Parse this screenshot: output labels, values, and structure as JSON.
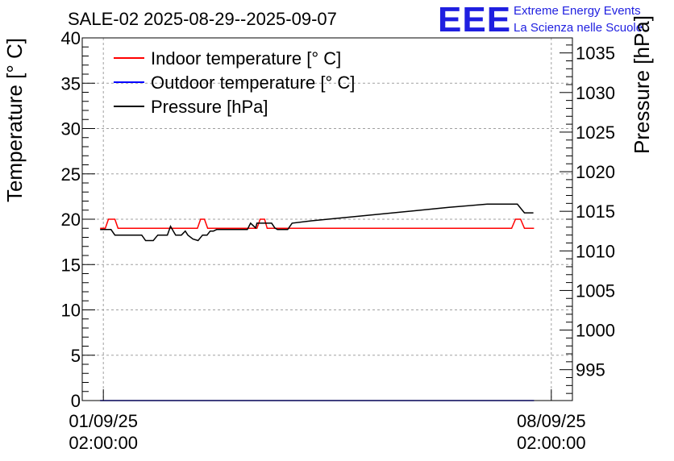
{
  "chart_data": {
    "type": "line",
    "title": "SALE-02 2025-08-29--2025-09-07",
    "logo": {
      "mark": "EEE",
      "line1": "Extreme Energy Events",
      "line2": "La Scienza nelle Scuole"
    },
    "ylabel_left": "Temperature [° C]",
    "ylabel_right": "Pressure [hPa]",
    "x_range_days": [
      -0.33,
      7.33
    ],
    "y_left_range": [
      0,
      40
    ],
    "y_right_range": [
      991.1,
      1036.9
    ],
    "x_ticks": [
      {
        "day": 0,
        "line1": "01/09/25",
        "line2": "02:00:00"
      },
      {
        "day": 7,
        "line1": "08/09/25",
        "line2": "02:00:00"
      }
    ],
    "y_left_ticks": [
      "0",
      "5",
      "10",
      "15",
      "20",
      "25",
      "30",
      "35",
      "40"
    ],
    "y_right_ticks": [
      "995",
      "1000",
      "1005",
      "1010",
      "1015",
      "1020",
      "1025",
      "1030",
      "1035"
    ],
    "grid": true,
    "legend_position": "top-left",
    "series": [
      {
        "name": "Indoor temperature [° C]",
        "color": "#ff0000",
        "axis": "left",
        "x": [
          -0.05,
          0.03,
          0.08,
          0.18,
          0.23,
          1.47,
          1.52,
          1.58,
          1.63,
          2.4,
          2.45,
          2.52,
          2.56,
          6.38,
          6.44,
          6.52,
          6.58,
          6.73
        ],
        "y": [
          19,
          19,
          20,
          20,
          19,
          19,
          20,
          20,
          19,
          19,
          20,
          20,
          19,
          19,
          20,
          20,
          19,
          19
        ]
      },
      {
        "name": "Outdoor temperature [° C]",
        "color": "#0000ff",
        "axis": "left",
        "x": [
          -0.05,
          6.73
        ],
        "y": [
          0,
          0
        ]
      },
      {
        "name": "Pressure [hPa]",
        "color": "#000000",
        "axis": "right",
        "x": [
          -0.05,
          0.12,
          0.18,
          0.6,
          0.66,
          0.78,
          0.85,
          1.0,
          1.05,
          1.1,
          1.13,
          1.22,
          1.28,
          1.32,
          1.4,
          1.48,
          1.55,
          1.62,
          1.67,
          1.72,
          1.77,
          1.8,
          1.84,
          2.25,
          2.3,
          2.38,
          2.4,
          2.63,
          2.68,
          2.72,
          2.78,
          2.88,
          2.95,
          3.25,
          5.4,
          6.0,
          6.47,
          6.58,
          6.72
        ],
        "y": [
          1012.7,
          1012.7,
          1012.0,
          1012.0,
          1011.3,
          1011.3,
          1012.0,
          1012.0,
          1013.1,
          1012.4,
          1012.0,
          1012.0,
          1012.5,
          1012.0,
          1011.5,
          1011.3,
          1012.0,
          1012.0,
          1012.5,
          1012.5,
          1012.7,
          1012.7,
          1012.7,
          1012.7,
          1013.5,
          1012.9,
          1013.5,
          1013.5,
          1012.9,
          1012.7,
          1012.7,
          1012.7,
          1013.5,
          1013.8,
          1015.5,
          1015.9,
          1015.9,
          1014.8,
          1014.8
        ]
      }
    ]
  }
}
